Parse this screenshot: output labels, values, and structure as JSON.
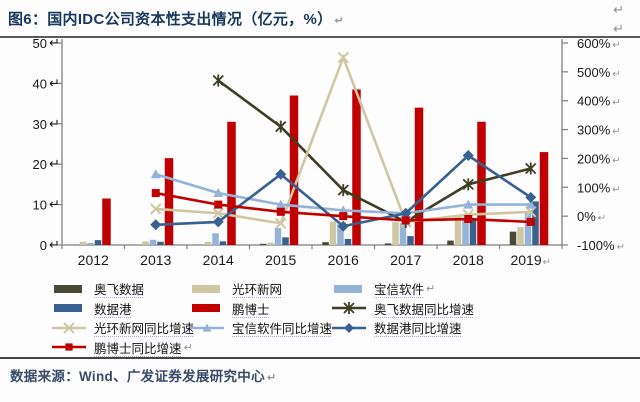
{
  "page": {
    "title": "图6：国内IDC公司资本性支出情况（亿元，%）",
    "pilcrow": "↵",
    "source": "数据来源：Wind、广发证券发展研究中心"
  },
  "chart_data": {
    "type": "combo-bar-line",
    "title": "国内IDC公司资本性支出情况（亿元，%）",
    "categories": [
      "2012",
      "2013",
      "2014",
      "2015",
      "2016",
      "2017",
      "2018",
      "2019"
    ],
    "left_axis": {
      "min": 0,
      "max": 50,
      "ticks": [
        50,
        40,
        30,
        20,
        10,
        0
      ],
      "unit": "亿元"
    },
    "right_axis": {
      "min": -100,
      "max": 600,
      "tick_step": 100,
      "ticks": [
        "600%",
        "500%",
        "400%",
        "300%",
        "200%",
        "100%",
        "0%",
        "-100%"
      ],
      "unit": "%"
    },
    "grid": "off",
    "legend_position": "bottom",
    "bar_series": [
      {
        "id": "aofei",
        "name": "奥飞数据",
        "color": "#494936",
        "values": [
          null,
          null,
          null,
          0.3,
          0.7,
          0.4,
          1.1,
          3.3
        ]
      },
      {
        "id": "guanghuan",
        "name": "光环新网",
        "color": "#cfc7a1",
        "values": [
          0.8,
          0.9,
          0.8,
          0.6,
          5.8,
          5.7,
          7.1,
          4.4
        ]
      },
      {
        "id": "baoxin",
        "name": "宝信软件",
        "color": "#95b3d7",
        "values": [
          0.5,
          1.3,
          2.9,
          4.2,
          5.2,
          5.4,
          6.3,
          8.3
        ]
      },
      {
        "id": "shujugang",
        "name": "数据港",
        "color": "#38618f",
        "values": [
          1.2,
          0.8,
          0.9,
          1.9,
          1.5,
          2.2,
          6.1,
          10.8
        ]
      },
      {
        "id": "pengboshi",
        "name": "鹏博士",
        "color": "#c00000",
        "values": [
          11.5,
          21.5,
          30.5,
          37,
          38.5,
          34,
          30.5,
          23
        ]
      }
    ],
    "line_series": [
      {
        "id": "aofei-yoy",
        "name": "奥飞数据同比增速",
        "color": "#3f3d24",
        "marker": "asterisk",
        "values": [
          null,
          null,
          470,
          310,
          90,
          -20,
          110,
          165
        ]
      },
      {
        "id": "guanghuan-yoy",
        "name": "光环新网同比增速",
        "color": "#cfc7a1",
        "marker": "x",
        "values": [
          null,
          25,
          10,
          -25,
          550,
          -20,
          5,
          15
        ]
      },
      {
        "id": "baoxin-yoy",
        "name": "宝信软件同比增速",
        "color": "#95b3d7",
        "marker": "triangle",
        "values": [
          null,
          145,
          80,
          40,
          20,
          10,
          40,
          40
        ]
      },
      {
        "id": "shujugang-yoy",
        "name": "数据港同比增速",
        "color": "#38618f",
        "marker": "diamond",
        "values": [
          null,
          -30,
          -20,
          145,
          -35,
          10,
          210,
          65
        ]
      },
      {
        "id": "pengboshi-yoy",
        "name": "鹏博士同比增速",
        "color": "#c00000",
        "marker": "square",
        "values": [
          null,
          80,
          40,
          15,
          0,
          -15,
          -10,
          -20
        ]
      }
    ],
    "legend": [
      {
        "id": "aofei",
        "label": "奥飞数据",
        "kind": "bar",
        "color": "#494936"
      },
      {
        "id": "guanghuan",
        "label": "光环新网",
        "kind": "bar",
        "color": "#cfc7a1"
      },
      {
        "id": "baoxin",
        "label": "宝信软件",
        "kind": "bar",
        "color": "#95b3d7",
        "pilcrow": true
      },
      {
        "id": "shujugang",
        "label": "数据港",
        "kind": "bar",
        "color": "#38618f"
      },
      {
        "id": "pengboshi",
        "label": "鹏博士",
        "kind": "bar",
        "color": "#c00000"
      },
      {
        "id": "aofei-yoy",
        "label": "奥飞数据同比增速",
        "kind": "line",
        "marker": "asterisk",
        "color": "#3f3d24"
      },
      {
        "id": "guanghuan-yoy",
        "label": "光环新网同比增速",
        "kind": "line",
        "marker": "x",
        "color": "#cfc7a1"
      },
      {
        "id": "baoxin-yoy",
        "label": "宝信软件同比增速",
        "kind": "line",
        "marker": "triangle",
        "color": "#95b3d7"
      },
      {
        "id": "shujugang-yoy",
        "label": "数据港同比增速",
        "kind": "line",
        "marker": "diamond",
        "color": "#38618f"
      },
      {
        "id": "pengboshi-yoy",
        "label": "鹏博士同比增速",
        "kind": "line",
        "marker": "square",
        "color": "#c00000",
        "pilcrow": true
      }
    ]
  }
}
